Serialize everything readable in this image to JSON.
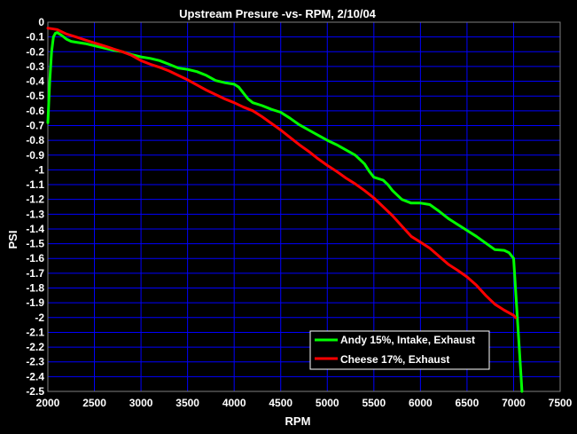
{
  "chart_data": {
    "type": "line",
    "title": "Upstream Presure -vs- RPM, 2/10/04",
    "xlabel": "RPM",
    "ylabel": "PSI",
    "xlim": [
      2000,
      7500
    ],
    "ylim": [
      -2.5,
      0
    ],
    "x_ticks": [
      2000,
      2500,
      3000,
      3500,
      4000,
      4500,
      5000,
      5500,
      6000,
      6500,
      7000,
      7500
    ],
    "y_ticks": [
      0,
      -0.1,
      -0.2,
      -0.3,
      -0.4,
      -0.5,
      -0.6,
      -0.7,
      -0.8,
      -0.9,
      -1,
      -1.1,
      -1.2,
      -1.3,
      -1.4,
      -1.5,
      -1.6,
      -1.7,
      -1.8,
      -1.9,
      -2,
      -2.1,
      -2.2,
      -2.3,
      -2.4,
      -2.5
    ],
    "grid": true,
    "legend_position": "bottom-right",
    "colors": {
      "background": "#000000",
      "plot_area": "#000000",
      "grid": "#0000ff",
      "text": "#ffffff"
    },
    "series": [
      {
        "name": "Andy 15%, Intake, Exhaust",
        "color": "#00ff00",
        "points": [
          [
            2000,
            -0.68
          ],
          [
            2020,
            -0.4
          ],
          [
            2040,
            -0.2
          ],
          [
            2060,
            -0.1
          ],
          [
            2080,
            -0.075
          ],
          [
            2100,
            -0.07
          ],
          [
            2150,
            -0.09
          ],
          [
            2200,
            -0.115
          ],
          [
            2250,
            -0.13
          ],
          [
            2300,
            -0.135
          ],
          [
            2400,
            -0.145
          ],
          [
            2500,
            -0.16
          ],
          [
            2600,
            -0.175
          ],
          [
            2700,
            -0.19
          ],
          [
            2800,
            -0.2
          ],
          [
            2900,
            -0.22
          ],
          [
            3000,
            -0.235
          ],
          [
            3100,
            -0.245
          ],
          [
            3200,
            -0.26
          ],
          [
            3300,
            -0.285
          ],
          [
            3400,
            -0.31
          ],
          [
            3500,
            -0.32
          ],
          [
            3600,
            -0.335
          ],
          [
            3700,
            -0.36
          ],
          [
            3800,
            -0.395
          ],
          [
            3900,
            -0.41
          ],
          [
            4000,
            -0.42
          ],
          [
            4050,
            -0.44
          ],
          [
            4100,
            -0.48
          ],
          [
            4150,
            -0.52
          ],
          [
            4200,
            -0.545
          ],
          [
            4300,
            -0.565
          ],
          [
            4400,
            -0.59
          ],
          [
            4500,
            -0.61
          ],
          [
            4600,
            -0.65
          ],
          [
            4700,
            -0.695
          ],
          [
            4800,
            -0.73
          ],
          [
            4900,
            -0.765
          ],
          [
            5000,
            -0.8
          ],
          [
            5100,
            -0.83
          ],
          [
            5200,
            -0.865
          ],
          [
            5300,
            -0.9
          ],
          [
            5350,
            -0.93
          ],
          [
            5400,
            -0.96
          ],
          [
            5450,
            -1.01
          ],
          [
            5500,
            -1.05
          ],
          [
            5600,
            -1.07
          ],
          [
            5650,
            -1.1
          ],
          [
            5700,
            -1.14
          ],
          [
            5800,
            -1.2
          ],
          [
            5900,
            -1.225
          ],
          [
            6000,
            -1.225
          ],
          [
            6100,
            -1.235
          ],
          [
            6200,
            -1.28
          ],
          [
            6300,
            -1.33
          ],
          [
            6400,
            -1.37
          ],
          [
            6500,
            -1.41
          ],
          [
            6600,
            -1.45
          ],
          [
            6700,
            -1.495
          ],
          [
            6800,
            -1.54
          ],
          [
            6900,
            -1.545
          ],
          [
            6950,
            -1.56
          ],
          [
            7000,
            -1.6
          ],
          [
            7020,
            -1.8
          ],
          [
            7040,
            -2.0
          ],
          [
            7060,
            -2.2
          ],
          [
            7080,
            -2.4
          ],
          [
            7090,
            -2.5
          ]
        ]
      },
      {
        "name": "Cheese 17%, Exhaust",
        "color": "#ff0000",
        "points": [
          [
            2000,
            -0.04
          ],
          [
            2100,
            -0.05
          ],
          [
            2200,
            -0.08
          ],
          [
            2300,
            -0.1
          ],
          [
            2400,
            -0.12
          ],
          [
            2500,
            -0.14
          ],
          [
            2600,
            -0.16
          ],
          [
            2700,
            -0.18
          ],
          [
            2800,
            -0.2
          ],
          [
            2900,
            -0.225
          ],
          [
            3000,
            -0.26
          ],
          [
            3100,
            -0.285
          ],
          [
            3200,
            -0.305
          ],
          [
            3300,
            -0.33
          ],
          [
            3400,
            -0.36
          ],
          [
            3500,
            -0.39
          ],
          [
            3600,
            -0.425
          ],
          [
            3700,
            -0.46
          ],
          [
            3800,
            -0.49
          ],
          [
            3900,
            -0.52
          ],
          [
            4000,
            -0.545
          ],
          [
            4100,
            -0.575
          ],
          [
            4200,
            -0.6
          ],
          [
            4300,
            -0.64
          ],
          [
            4400,
            -0.685
          ],
          [
            4500,
            -0.73
          ],
          [
            4600,
            -0.78
          ],
          [
            4700,
            -0.83
          ],
          [
            4800,
            -0.875
          ],
          [
            4900,
            -0.925
          ],
          [
            5000,
            -0.97
          ],
          [
            5100,
            -1.01
          ],
          [
            5200,
            -1.055
          ],
          [
            5300,
            -1.095
          ],
          [
            5400,
            -1.14
          ],
          [
            5500,
            -1.19
          ],
          [
            5600,
            -1.25
          ],
          [
            5700,
            -1.31
          ],
          [
            5800,
            -1.38
          ],
          [
            5900,
            -1.45
          ],
          [
            6000,
            -1.49
          ],
          [
            6100,
            -1.53
          ],
          [
            6200,
            -1.585
          ],
          [
            6300,
            -1.64
          ],
          [
            6400,
            -1.68
          ],
          [
            6500,
            -1.725
          ],
          [
            6600,
            -1.78
          ],
          [
            6700,
            -1.85
          ],
          [
            6800,
            -1.91
          ],
          [
            6900,
            -1.95
          ],
          [
            7000,
            -1.985
          ],
          [
            7020,
            -2.0
          ]
        ]
      }
    ]
  }
}
